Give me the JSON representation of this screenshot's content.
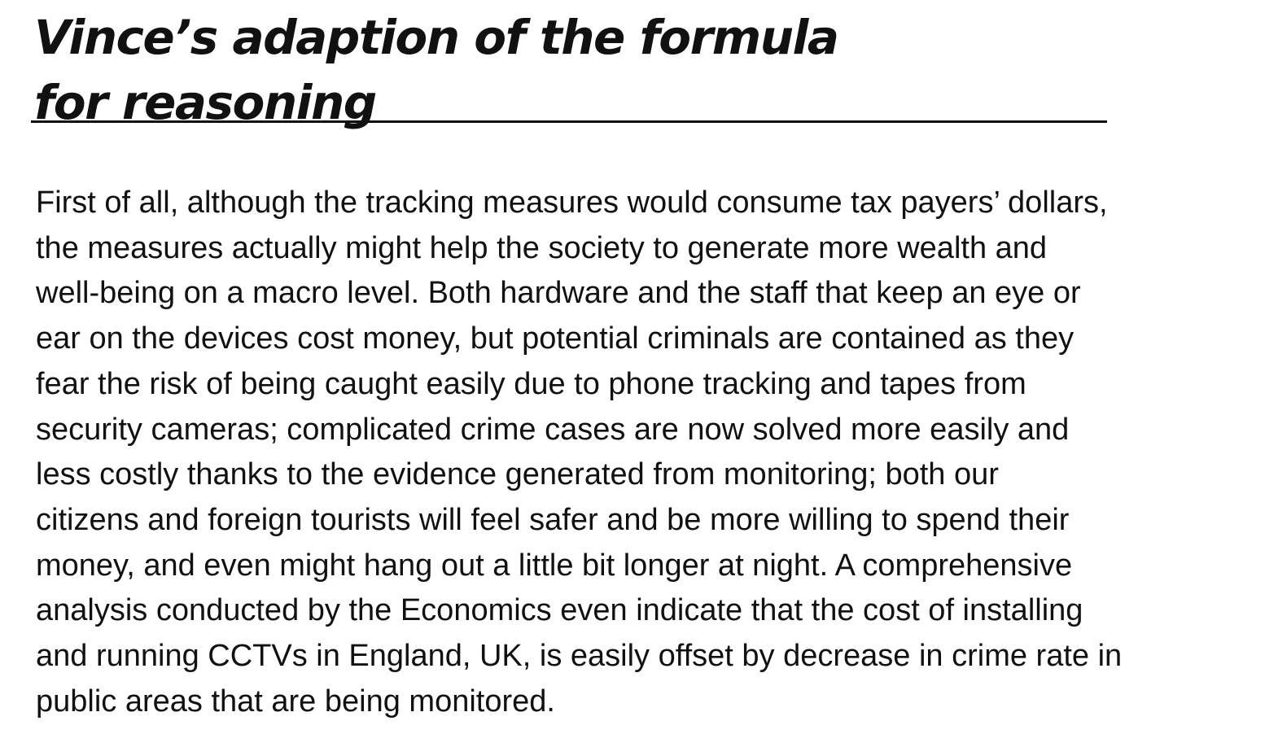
{
  "title": {
    "lines": [
      "Vince’s adaption of the formula",
      "for reasoning"
    ]
  },
  "body": {
    "lines": [
      "First of all, although the tracking measures would consume tax payers’ dollars,",
      "the measures actually might help the society to generate more wealth and",
      "well-being on a macro level. Both hardware and the staff that keep an eye or",
      "ear on the devices cost money, but potential criminals are contained as they",
      "fear the risk of being caught easily due to phone tracking and tapes from",
      "security cameras; complicated crime cases are now solved more easily and",
      "less costly thanks to the evidence generated from monitoring; both our",
      "citizens and foreign tourists will feel safer and be more willing to spend their",
      "money, and even might hang out a little bit longer at night. A comprehensive",
      "analysis conducted by the Economics even indicate that the cost of installing",
      "and running CCTVs in England, UK, is easily offset by decrease in crime rate in",
      "public areas that are being monitored."
    ]
  }
}
